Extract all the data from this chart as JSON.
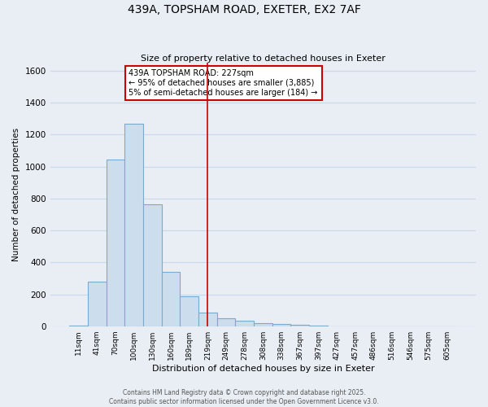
{
  "title": "439A, TOPSHAM ROAD, EXETER, EX2 7AF",
  "subtitle": "Size of property relative to detached houses in Exeter",
  "xlabel": "Distribution of detached houses by size in Exeter",
  "ylabel": "Number of detached properties",
  "bar_labels": [
    "11sqm",
    "41sqm",
    "70sqm",
    "100sqm",
    "130sqm",
    "160sqm",
    "189sqm",
    "219sqm",
    "249sqm",
    "278sqm",
    "308sqm",
    "338sqm",
    "367sqm",
    "397sqm",
    "427sqm",
    "457sqm",
    "486sqm",
    "516sqm",
    "546sqm",
    "575sqm",
    "605sqm"
  ],
  "bar_values": [
    5,
    280,
    1045,
    1270,
    765,
    340,
    185,
    85,
    50,
    35,
    20,
    12,
    8,
    5,
    0,
    0,
    0,
    0,
    0,
    0,
    0
  ],
  "bar_color": "#ccdded",
  "bar_edge_color": "#7aabcc",
  "vline_x_index": 7,
  "vline_color": "#cc0000",
  "annotation_title": "439A TOPSHAM ROAD: 227sqm",
  "annotation_line1": "← 95% of detached houses are smaller (3,885)",
  "annotation_line2": "5% of semi-detached houses are larger (184) →",
  "annotation_box_color": "#ffffff",
  "annotation_box_edge": "#cc0000",
  "ylim": [
    0,
    1650
  ],
  "yticks": [
    0,
    200,
    400,
    600,
    800,
    1000,
    1200,
    1400,
    1600
  ],
  "footer1": "Contains HM Land Registry data © Crown copyright and database right 2025.",
  "footer2": "Contains public sector information licensed under the Open Government Licence v3.0.",
  "background_color": "#e8eef4",
  "grid_color": "#c8d8e8",
  "plot_bg_color": "#e8eef4"
}
